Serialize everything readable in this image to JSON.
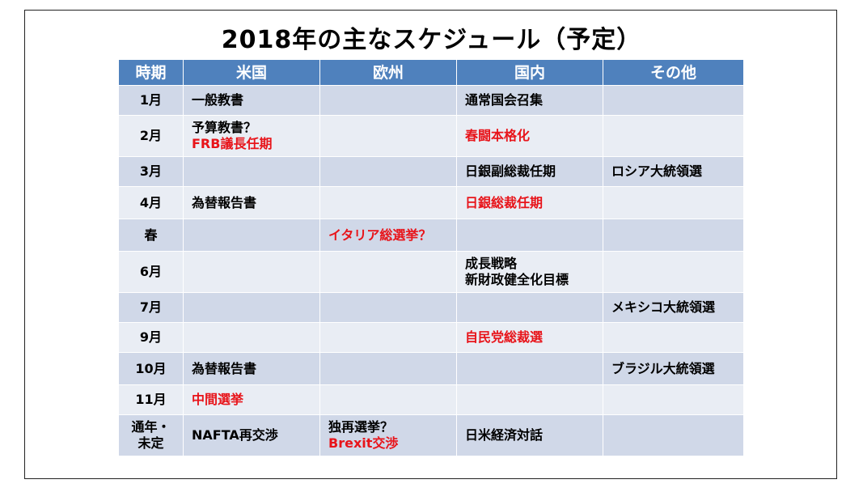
{
  "title": "2018年の主なスケジュール（予定）",
  "colors": {
    "header_bg": "#4F81BD",
    "row_dark": "#D0D8E8",
    "row_light": "#E9EDF4",
    "highlight": "#E8141A"
  },
  "table": {
    "headers": [
      "時期",
      "米国",
      "欧州",
      "国内",
      "その他"
    ],
    "rows": [
      {
        "period": "1月",
        "us": [
          {
            "text": "一般教書",
            "red": false
          }
        ],
        "eu": [],
        "jp": [
          {
            "text": "通常国会召集",
            "red": false
          }
        ],
        "other": []
      },
      {
        "period": "2月",
        "us": [
          {
            "text": "予算教書？",
            "red": false
          },
          {
            "text": "FRB議長任期",
            "red": true
          }
        ],
        "eu": [],
        "jp": [
          {
            "text": "春闘本格化",
            "red": true
          }
        ],
        "other": []
      },
      {
        "period": "3月",
        "us": [],
        "eu": [],
        "jp": [
          {
            "text": "日銀副総裁任期",
            "red": false
          }
        ],
        "other": [
          {
            "text": "ロシア大統領選",
            "red": false
          }
        ]
      },
      {
        "period": "4月",
        "us": [
          {
            "text": "為替報告書",
            "red": false
          }
        ],
        "eu": [],
        "jp": [
          {
            "text": "日銀総裁任期",
            "red": true
          }
        ],
        "other": []
      },
      {
        "period": "春",
        "us": [],
        "eu": [
          {
            "text": "イタリア総選挙？",
            "red": true
          }
        ],
        "jp": [],
        "other": []
      },
      {
        "period": "6月",
        "us": [],
        "eu": [],
        "jp": [
          {
            "text": "成長戦略",
            "red": false
          },
          {
            "text": "新財政健全化目標",
            "red": false
          }
        ],
        "other": []
      },
      {
        "period": "7月",
        "us": [],
        "eu": [],
        "jp": [],
        "other": [
          {
            "text": "メキシコ大統領選",
            "red": false
          }
        ]
      },
      {
        "period": "9月",
        "us": [],
        "eu": [],
        "jp": [
          {
            "text": "自民党総裁選",
            "red": true
          }
        ],
        "other": []
      },
      {
        "period": "10月",
        "us": [
          {
            "text": "為替報告書",
            "red": false
          }
        ],
        "eu": [],
        "jp": [],
        "other": [
          {
            "text": "ブラジル大統領選",
            "red": false
          }
        ]
      },
      {
        "period": "11月",
        "us": [
          {
            "text": "中間選挙",
            "red": true
          }
        ],
        "eu": [],
        "jp": [],
        "other": []
      },
      {
        "period": "通年・未定",
        "period_lines": [
          "通年・",
          "未定"
        ],
        "us": [
          {
            "text": "NAFTA再交渉",
            "red": false
          }
        ],
        "eu": [
          {
            "text": "独再選挙？",
            "red": false
          },
          {
            "text": "Brexit交渉",
            "red": true
          }
        ],
        "jp": [
          {
            "text": "日米経済対話",
            "red": false
          }
        ],
        "other": []
      }
    ]
  }
}
